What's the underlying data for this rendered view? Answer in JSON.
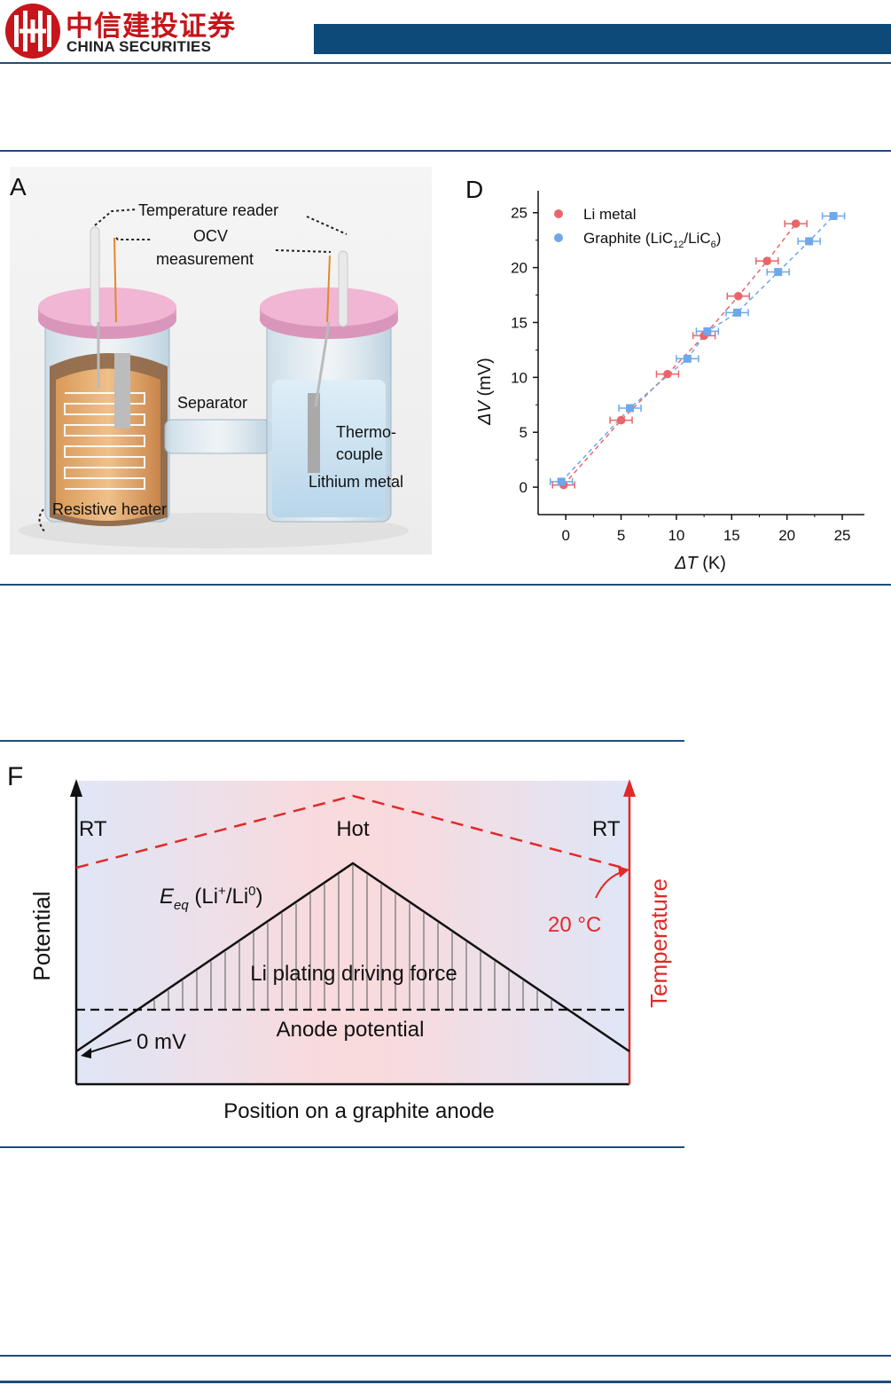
{
  "header": {
    "brand_cn": "中信建投证券",
    "brand_en": "CHINA SECURITIES",
    "brand_color": "#c6151b",
    "band_color": "#0d4a79",
    "rule_color": "#1f4e79"
  },
  "figure_a": {
    "letter": "A",
    "label_temperature_reader": "Temperature reader",
    "label_ocv_1": "OCV",
    "label_ocv_2": "measurement",
    "label_separator": "Separator",
    "label_thermo_1": "Thermo-",
    "label_thermo_2": "couple",
    "label_lithium": "Lithium metal",
    "label_heater": "Resistive heater"
  },
  "figure_d": {
    "letter": "D",
    "chart_data": {
      "type": "scatter",
      "xlabel_symbol": "ΔT",
      "xlabel_unit": "(K)",
      "ylabel_symbol": "ΔV",
      "ylabel_unit": "(mV)",
      "xlim": [
        -2.5,
        27
      ],
      "ylim": [
        -2.5,
        27
      ],
      "xticks": [
        0,
        5,
        10,
        15,
        20,
        25
      ],
      "yticks": [
        0,
        5,
        10,
        15,
        20,
        25
      ],
      "legend_position": "top-left",
      "series": [
        {
          "name": "Li metal",
          "color": "#e8666a",
          "marker": "circle",
          "x": [
            -0.2,
            5,
            9.2,
            12.5,
            15.6,
            18.2,
            20.8
          ],
          "y": [
            0.2,
            6.1,
            10.3,
            13.8,
            17.4,
            20.6,
            24.0
          ],
          "xerr": 1.0
        },
        {
          "name": "Graphite (LiC12/LiC6)",
          "color": "#6fa8e8",
          "marker": "square",
          "x": [
            -0.4,
            5.8,
            11,
            12.8,
            15.5,
            19.2,
            22,
            24.2
          ],
          "y": [
            0.5,
            7.2,
            11.7,
            14.2,
            15.9,
            19.6,
            22.4,
            24.7
          ],
          "xerr": 1.0
        }
      ],
      "legend_li": "Li metal",
      "legend_graphite_pre": "Graphite (LiC",
      "legend_graphite_sub1": "12",
      "legend_graphite_mid": "/LiC",
      "legend_graphite_sub2": "6",
      "legend_graphite_post": ")"
    }
  },
  "figure_f": {
    "letter": "F",
    "label_rt_left": "RT",
    "label_hot": "Hot",
    "label_rt_right": "RT",
    "label_potential": "Potential",
    "label_temperature": "Temperature",
    "label_eeq_main": "E",
    "label_eeq_sub": "eq",
    "label_eeq_rest": " (Li",
    "label_eeq_sup1": "+",
    "label_eeq_mid": "/Li",
    "label_eeq_sup2": "0",
    "label_eeq_end": ")",
    "label_20c": "20 °C",
    "label_driving_force": "Li plating driving force",
    "label_anode_potential": "Anode potential",
    "label_0mv": "0 mV",
    "label_position": "Position on a graphite anode",
    "accent_red": "#e02a2a"
  }
}
